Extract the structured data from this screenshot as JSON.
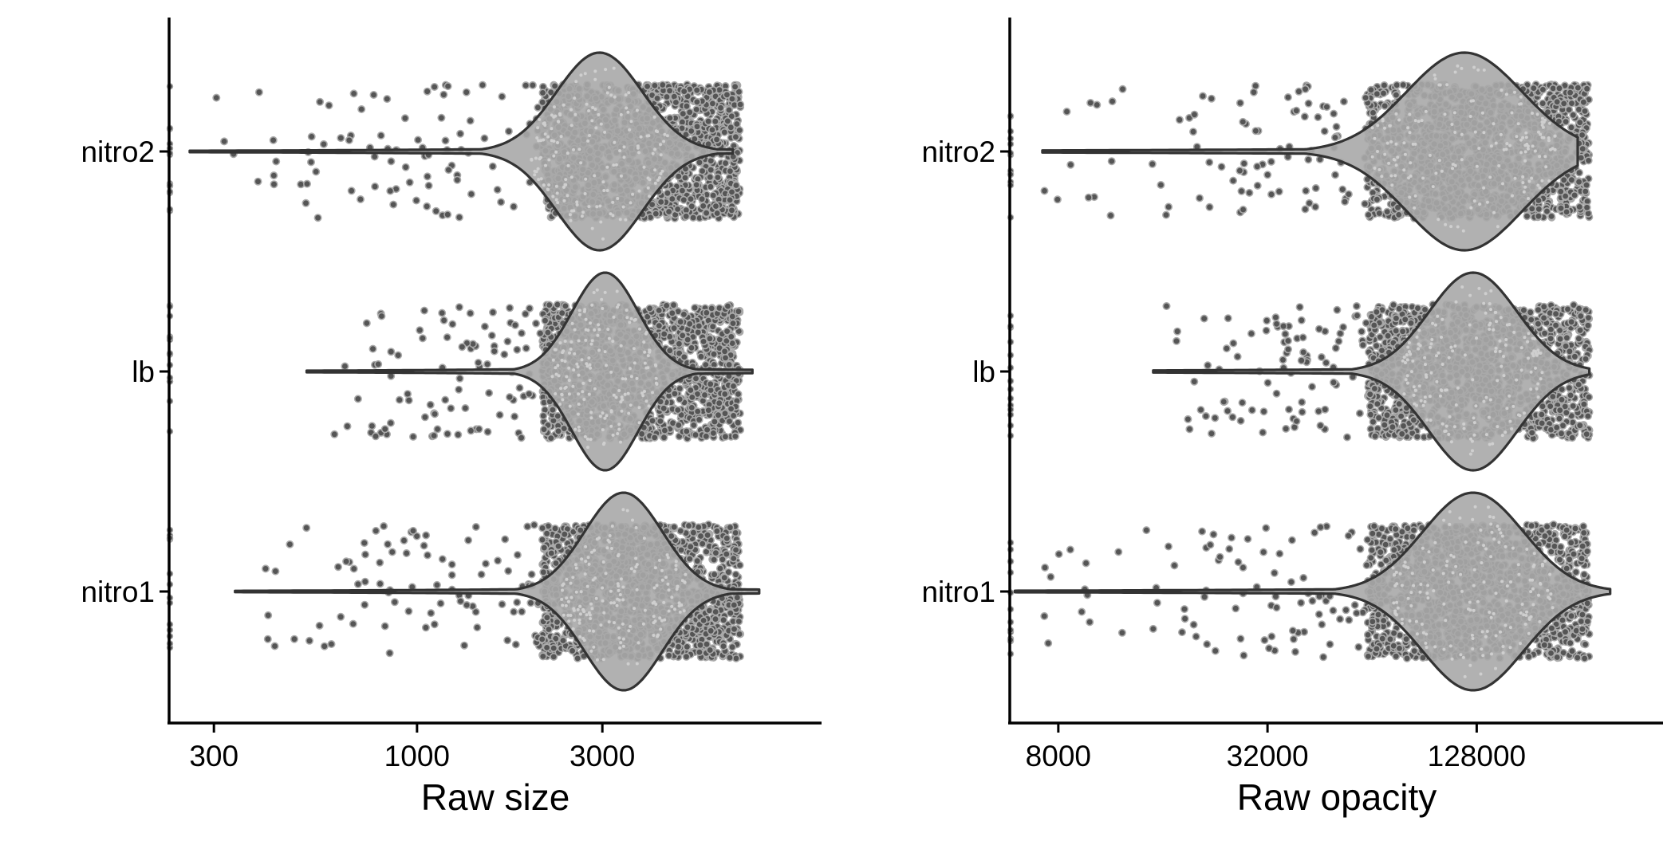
{
  "chart_data": [
    {
      "type": "violin",
      "panel": "left",
      "xlabel": "Raw size",
      "ylabel": "",
      "x_scale": "log10",
      "xlim": [
        230,
        11000
      ],
      "x_ticks": [
        300,
        1000,
        3000
      ],
      "x_tick_labels": [
        "300",
        "1000",
        "3000"
      ],
      "categories": [
        "nitro2",
        "lb",
        "nitro1"
      ],
      "violins": [
        {
          "category": "nitro2",
          "min": 260,
          "max": 6500,
          "peak": 2950,
          "spread_log10": 0.11
        },
        {
          "category": "lb",
          "min": 520,
          "max": 7300,
          "peak": 3050,
          "spread_log10": 0.085
        },
        {
          "category": "nitro1",
          "min": 340,
          "max": 7600,
          "peak": 3400,
          "spread_log10": 0.1
        }
      ],
      "points_per_group": 1400,
      "jitter_range": [
        2100,
        6800
      ],
      "point_color": "#555555",
      "point_outline": "#aaaaaa",
      "violin_fill": "#a9a9a9",
      "violin_stroke": "#333333",
      "grid": false,
      "legend": "none"
    },
    {
      "type": "violin",
      "panel": "right",
      "xlabel": "Raw opacity",
      "ylabel": "",
      "x_scale": "log2",
      "xlim": [
        5800,
        440000
      ],
      "x_ticks": [
        8000,
        32000,
        128000
      ],
      "x_tick_labels": [
        "8000",
        "32000",
        "128000"
      ],
      "categories": [
        "nitro2",
        "lb",
        "nitro1"
      ],
      "violins": [
        {
          "category": "nitro2",
          "min": 7200,
          "max": 250000,
          "peak": 118000,
          "spread_log2": 0.55
        },
        {
          "category": "lb",
          "min": 15000,
          "max": 270000,
          "peak": 125000,
          "spread_log2": 0.42
        },
        {
          "category": "nitro1",
          "min": 6000,
          "max": 310000,
          "peak": 125000,
          "spread_log2": 0.48
        }
      ],
      "points_per_group": 1400,
      "jitter_range": [
        62000,
        270000
      ],
      "point_color": "#555555",
      "point_outline": "#aaaaaa",
      "violin_fill": "#a9a9a9",
      "violin_stroke": "#333333",
      "grid": false,
      "legend": "none"
    }
  ]
}
